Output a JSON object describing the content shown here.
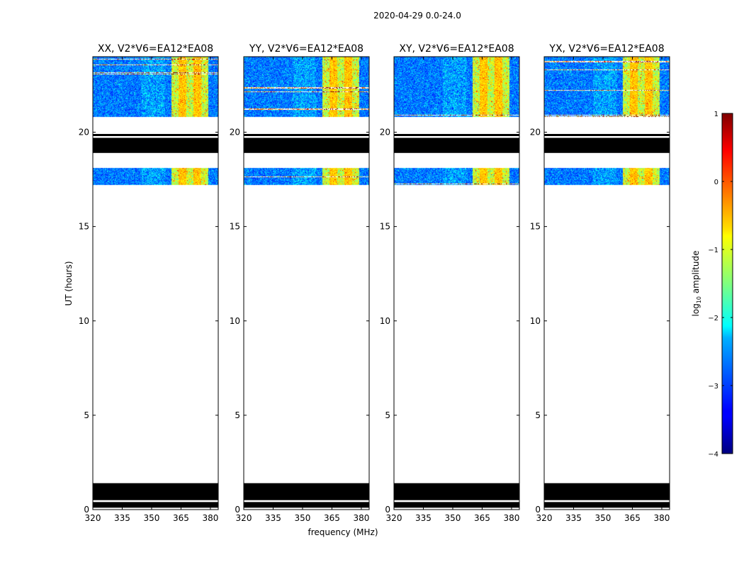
{
  "figure": {
    "suptitle": "2020-04-29 0.0-24.0",
    "xlabel": "frequency (MHz)",
    "ylabel": "UT (hours)",
    "colors": {
      "background": "#ffffff",
      "flagged": "#000000",
      "empty": "#ffffff"
    }
  },
  "chart_data": {
    "type": "heatmap",
    "panels": [
      {
        "title": "XX, V2*V6=EA12*EA08",
        "seed": 11
      },
      {
        "title": "YY, V2*V6=EA12*EA08",
        "seed": 23
      },
      {
        "title": "XY, V2*V6=EA12*EA08",
        "seed": 37
      },
      {
        "title": "YX, V2*V6=EA12*EA08",
        "seed": 53
      }
    ],
    "xlim": [
      320,
      384
    ],
    "ylim": [
      0,
      24
    ],
    "xticks": [
      320,
      335,
      350,
      365,
      380
    ],
    "xtick_labels": [
      "320",
      "335",
      "350",
      "365",
      "380"
    ],
    "yticks": [
      0,
      5,
      10,
      15,
      20
    ],
    "ytick_labels": [
      "0",
      "5",
      "10",
      "15",
      "20"
    ],
    "data_bands_hours": [
      [
        17.2,
        18.1
      ],
      [
        20.8,
        24.0
      ]
    ],
    "flagged_bands_hours": [
      [
        0.1,
        0.4
      ],
      [
        0.5,
        1.4
      ],
      [
        18.9,
        19.7
      ]
    ],
    "flagged_line_hour": 19.85,
    "bright_channel_range_MHz": [
      360,
      379
    ],
    "colorbar": {
      "label": "log10 amplitude",
      "label_base": "log",
      "label_sub": "10",
      "label_rest": " amplitude",
      "vmin": -4,
      "vmax": 1,
      "ticks": [
        1,
        0,
        -1,
        -2,
        -3,
        -4
      ],
      "tick_labels": [
        "1",
        "0",
        "−1",
        "−2",
        "−3",
        "−4"
      ],
      "colormap": "jet"
    }
  }
}
